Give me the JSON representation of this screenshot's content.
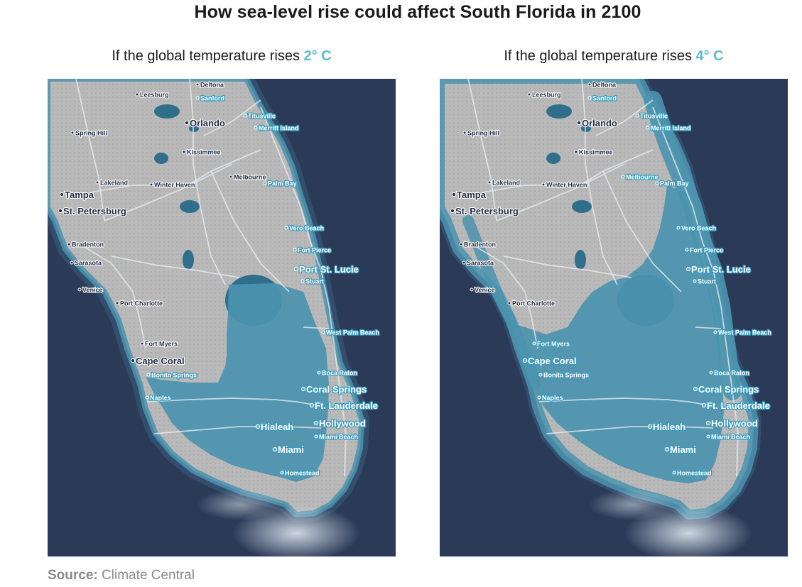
{
  "title": "How sea-level rise could affect South Florida in 2100",
  "panels": [
    {
      "heading_prefix": "If the global temperature rises ",
      "heading_value": "2° C",
      "scenario": "2C"
    },
    {
      "heading_prefix": "If the global temperature rises ",
      "heading_value": "4° C",
      "scenario": "4C"
    }
  ],
  "cities": [
    {
      "name": "Deltona",
      "size": "small"
    },
    {
      "name": "Leesburg",
      "size": "small"
    },
    {
      "name": "Sanford",
      "size": "small"
    },
    {
      "name": "Titusville",
      "size": "small"
    },
    {
      "name": "Orlando",
      "size": "large"
    },
    {
      "name": "Merritt Island",
      "size": "small"
    },
    {
      "name": "Spring Hill",
      "size": "small"
    },
    {
      "name": "Kissimmee",
      "size": "small"
    },
    {
      "name": "Lakeland",
      "size": "small"
    },
    {
      "name": "Winter Haven",
      "size": "small"
    },
    {
      "name": "Melbourne",
      "size": "small"
    },
    {
      "name": "Palm Bay",
      "size": "small"
    },
    {
      "name": "Tampa",
      "size": "large"
    },
    {
      "name": "St. Petersburg",
      "size": "large"
    },
    {
      "name": "Vero Beach",
      "size": "small"
    },
    {
      "name": "Bradenton",
      "size": "small"
    },
    {
      "name": "Fort Pierce",
      "size": "small"
    },
    {
      "name": "Sarasota",
      "size": "small"
    },
    {
      "name": "Port St. Lucie",
      "size": "large"
    },
    {
      "name": "Stuart",
      "size": "small"
    },
    {
      "name": "Venice",
      "size": "small"
    },
    {
      "name": "Port Charlotte",
      "size": "small"
    },
    {
      "name": "West Palm Beach",
      "size": "small"
    },
    {
      "name": "Fort Myers",
      "size": "small"
    },
    {
      "name": "Cape Coral",
      "size": "large"
    },
    {
      "name": "Boca Raton",
      "size": "small"
    },
    {
      "name": "Bonita Springs",
      "size": "small"
    },
    {
      "name": "Coral Springs",
      "size": "large"
    },
    {
      "name": "Naples",
      "size": "small"
    },
    {
      "name": "Ft. Lauderdale",
      "size": "large"
    },
    {
      "name": "Hollywood",
      "size": "large"
    },
    {
      "name": "Hialeah",
      "size": "large"
    },
    {
      "name": "Miami Beach",
      "size": "small"
    },
    {
      "name": "Miami",
      "size": "large"
    },
    {
      "name": "Homestead",
      "size": "small"
    }
  ],
  "colors": {
    "ocean": "#2a3a57",
    "land": "#b9b9b9",
    "flooded": "#4b93ae",
    "lake": "#2f6f8c",
    "accent": "#5bb9d6"
  },
  "source_label": "Source:",
  "source_value": "Climate Central"
}
